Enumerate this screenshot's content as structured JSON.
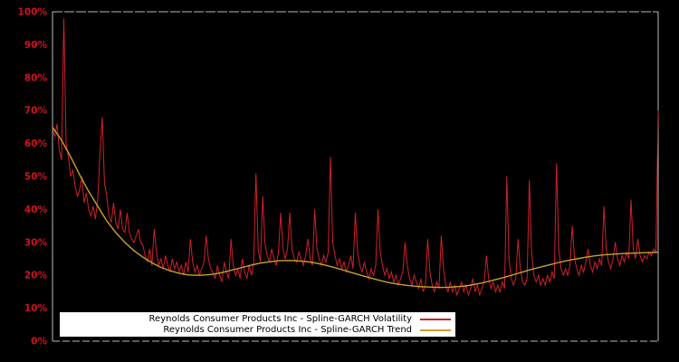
{
  "window": {
    "background_color": "#000000"
  },
  "chart_data": {
    "type": "line",
    "title": "",
    "background_color": "#000000",
    "plot_border_color": "#b8b8b8",
    "grid": false,
    "legend": {
      "position": "bottom-center-inside",
      "background_color": "#ffffff",
      "text_color": "#000000"
    },
    "x_axis": {
      "label": "",
      "tick_labels": []
    },
    "y_axis": {
      "label": "",
      "min": 0,
      "max": 100,
      "label_color": "#d0121f",
      "tick_values": [
        0,
        10,
        20,
        30,
        40,
        50,
        60,
        70,
        80,
        90,
        100
      ],
      "tick_labels": [
        "0%",
        "10%",
        "20%",
        "30%",
        "40%",
        "50%",
        "60%",
        "70%",
        "80%",
        "90%",
        "100%"
      ]
    },
    "series": [
      {
        "name": "Reynolds Consumer Products Inc - Spline-GARCH Volatility",
        "color": "#d1202a",
        "style": "spiky-line",
        "unit": "%",
        "values": [
          65,
          62,
          66,
          58,
          55,
          98,
          60,
          56,
          50,
          52,
          47,
          44,
          46,
          50,
          42,
          45,
          40,
          38,
          41,
          37,
          43,
          57,
          68,
          48,
          44,
          38,
          36,
          42,
          36,
          34,
          40,
          34,
          33,
          39,
          33,
          31,
          30,
          32,
          34,
          30,
          29,
          26,
          24,
          28,
          23,
          34,
          27,
          23,
          25,
          22,
          26,
          23,
          21,
          25,
          22,
          24,
          21,
          23,
          20,
          24,
          21,
          31,
          24,
          21,
          23,
          20,
          22,
          24,
          32,
          25,
          22,
          21,
          19,
          23,
          20,
          18,
          24,
          21,
          19,
          31,
          23,
          20,
          22,
          19,
          25,
          21,
          19,
          23,
          20,
          24,
          51,
          28,
          24,
          44,
          30,
          26,
          24,
          28,
          25,
          23,
          27,
          39,
          28,
          25,
          28,
          39,
          28,
          25,
          24,
          27,
          25,
          23,
          26,
          31,
          25,
          23,
          40,
          28,
          25,
          23,
          26,
          24,
          27,
          56,
          30,
          26,
          23,
          25,
          22,
          24,
          21,
          23,
          26,
          22,
          39,
          27,
          23,
          21,
          24,
          21,
          19,
          22,
          20,
          23,
          40,
          27,
          23,
          20,
          22,
          19,
          21,
          18,
          20,
          17,
          19,
          21,
          30,
          23,
          19,
          17,
          20,
          18,
          16,
          19,
          15,
          17,
          31,
          21,
          17,
          15,
          18,
          16,
          32,
          22,
          17,
          15,
          18,
          15,
          17,
          14,
          16,
          18,
          15,
          17,
          14,
          16,
          19,
          15,
          17,
          14,
          16,
          18,
          26,
          19,
          16,
          18,
          15,
          17,
          15,
          18,
          16,
          50,
          25,
          19,
          17,
          19,
          31,
          22,
          18,
          17,
          19,
          49,
          27,
          20,
          18,
          20,
          17,
          19,
          17,
          20,
          18,
          21,
          19,
          54,
          28,
          22,
          20,
          22,
          20,
          23,
          35,
          25,
          22,
          20,
          23,
          21,
          24,
          28,
          23,
          21,
          24,
          22,
          25,
          23,
          41,
          28,
          24,
          22,
          25,
          30,
          25,
          23,
          26,
          24,
          27,
          25,
          43,
          28,
          25,
          31,
          26,
          24,
          26,
          25,
          27,
          26,
          28,
          27,
          70
        ]
      },
      {
        "name": "Reynolds Consumer Products Inc - Spline-GARCH Trend",
        "color": "#c9a22e",
        "style": "smooth-line",
        "unit": "%",
        "values": [
          65,
          61,
          56,
          50.5,
          45.5,
          41,
          36.5,
          33,
          30,
          27.5,
          25.5,
          23.8,
          22.4,
          21.4,
          20.6,
          20.1,
          20,
          20.1,
          20.4,
          21,
          21.7,
          22.4,
          23.1,
          23.7,
          24.1,
          24.4,
          24.5,
          24.4,
          24.2,
          23.8,
          23.2,
          22.5,
          21.7,
          20.9,
          20.1,
          19.3,
          18.6,
          17.9,
          17.4,
          17,
          16.7,
          16.5,
          16.4,
          16.3,
          16.4,
          16.6,
          16.9,
          17.4,
          18,
          18.7,
          19.4,
          20.2,
          21,
          21.8,
          22.5,
          23.2,
          23.9,
          24.5,
          25,
          25.5,
          25.9,
          26.2,
          26.4,
          26.6,
          26.7,
          26.8,
          26.9,
          27
        ]
      }
    ]
  }
}
